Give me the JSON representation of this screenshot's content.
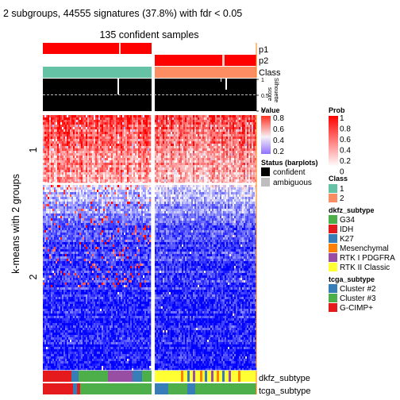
{
  "chart_data": {
    "type": "heatmap",
    "title": "2 subgroups, 44555 signatures (37.8%) with fdr < 0.05",
    "subtitle": "135 confident samples",
    "row_title": "k-means with 2 groups",
    "row_slice_labels": [
      "1",
      "2"
    ],
    "top_annotations": [
      "p1",
      "p2",
      "Class"
    ],
    "silhouette": {
      "label_line1": "Silhouette",
      "label_line2": "score",
      "ticks": [
        "1",
        "0.5",
        "0"
      ],
      "threshold": 0.5
    },
    "bottom_annotations": [
      "dkfz_subtype",
      "tcga_subtype"
    ],
    "column_groups": [
      {
        "class": "1",
        "columns": 138,
        "p1": 1.0,
        "p2": 0.0
      },
      {
        "class": "2",
        "columns": 130,
        "p1": 0.0,
        "p2": 1.0
      }
    ],
    "row_groups": [
      {
        "label": "1",
        "rows": 85
      },
      {
        "label": "2",
        "rows": 233
      }
    ],
    "legends": {
      "value": {
        "title": "Value",
        "ticks": [
          "0.8",
          "0.6",
          "0.4",
          "0.2"
        ],
        "colors": [
          "#ff0000",
          "#ffffff",
          "#0000ff"
        ]
      },
      "prob": {
        "title": "Prob",
        "ticks": [
          "1",
          "0.8",
          "0.6",
          "0.4",
          "0.2",
          "0"
        ],
        "colors": [
          "#ff0000",
          "#ffffff"
        ]
      },
      "status": {
        "title": "Status (barplots)",
        "items": [
          {
            "label": "confident",
            "color": "#000000"
          },
          {
            "label": "ambiguous",
            "color": "#bebebe"
          }
        ]
      },
      "class": {
        "title": "Class",
        "items": [
          {
            "label": "1",
            "color": "#66c2a5"
          },
          {
            "label": "2",
            "color": "#fc8d62"
          }
        ]
      },
      "dkfz_subtype": {
        "title": "dkfz_subtype",
        "items": [
          {
            "label": "G34",
            "color": "#4daf4a"
          },
          {
            "label": "IDH",
            "color": "#e41a1c"
          },
          {
            "label": "K27",
            "color": "#377eb8"
          },
          {
            "label": "Mesenchymal",
            "color": "#ff7f00"
          },
          {
            "label": "RTK I PDGFRA",
            "color": "#984ea3"
          },
          {
            "label": "RTK II Classic",
            "color": "#ffff33"
          }
        ]
      },
      "tcga_subtype": {
        "title": "tcga_subtype",
        "items": [
          {
            "label": "Cluster #2",
            "color": "#377eb8"
          },
          {
            "label": "Cluster #3",
            "color": "#4daf4a"
          },
          {
            "label": "G-CIMP+",
            "color": "#e41a1c"
          }
        ]
      }
    }
  }
}
